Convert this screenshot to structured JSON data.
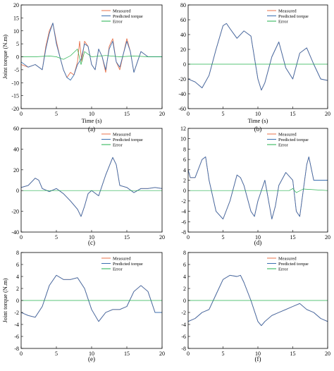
{
  "legend": [
    "Measured",
    "Predicted torque",
    "Error"
  ],
  "colors": {
    "measured": "#e8704a",
    "predicted": "#3a6fb0",
    "error": "#22b14c"
  },
  "chart_data": [
    {
      "type": "line",
      "panel_label": "(a)",
      "xlabel": "Time (s)",
      "ylabel": "Joint torque (N.m)",
      "xlim": [
        0,
        20
      ],
      "ylim": [
        -20,
        20
      ],
      "xticks": [
        0,
        5,
        10,
        15,
        20
      ],
      "yticks": [
        -20,
        -15,
        -10,
        -5,
        0,
        5,
        10,
        15,
        20
      ],
      "legend_position": "top-right",
      "series": [
        {
          "name": "Measured",
          "x": [
            0,
            1,
            2,
            3,
            3.5,
            4,
            4.5,
            5,
            5.5,
            6,
            6.5,
            7,
            7.5,
            8,
            8.3,
            8.6,
            9,
            9.5,
            10,
            10.5,
            11,
            11.5,
            12,
            12.5,
            13,
            13.5,
            14,
            14.5,
            15,
            15.5,
            16,
            16.5,
            17,
            17.5,
            18,
            19,
            20
          ],
          "y": [
            -3,
            -4,
            -3,
            -5,
            4,
            10,
            13,
            6,
            0,
            -5,
            -8,
            -6,
            -7,
            -2,
            6,
            -2,
            6,
            4,
            -3,
            -5,
            3,
            0,
            -6,
            4,
            7,
            -2,
            -5,
            1,
            7,
            2,
            -6,
            -2,
            2,
            1,
            0,
            0,
            0
          ]
        },
        {
          "name": "Predicted torque",
          "x": [
            0,
            1,
            2,
            3,
            3.5,
            4,
            4.5,
            5,
            5.5,
            6,
            6.5,
            7,
            7.5,
            8,
            8.5,
            9,
            9.5,
            10,
            10.5,
            11,
            11.5,
            12,
            12.5,
            13,
            13.5,
            14,
            14.5,
            15,
            15.5,
            16,
            16.5,
            17,
            17.5,
            18,
            19,
            20
          ],
          "y": [
            -2,
            -4,
            -3,
            -5,
            3,
            9,
            13,
            5,
            0,
            -5,
            -8,
            -9,
            -7,
            -3,
            -1,
            5,
            4,
            -3,
            -5,
            3,
            0,
            -5,
            3,
            6,
            -2,
            -4,
            1,
            6,
            2,
            -6,
            -2,
            2,
            1,
            0,
            0,
            0
          ]
        },
        {
          "name": "Error",
          "x": [
            0,
            2,
            4,
            5,
            6,
            7,
            8,
            8.5,
            9,
            10,
            12,
            14,
            16,
            18,
            20
          ],
          "y": [
            0,
            0,
            0.3,
            0,
            -1,
            0.4,
            3,
            -3,
            2,
            0,
            0.5,
            0,
            0.3,
            0,
            0
          ]
        }
      ]
    },
    {
      "type": "line",
      "panel_label": "(b)",
      "xlabel": "Time (s)",
      "ylabel": "",
      "xlim": [
        0,
        20
      ],
      "ylim": [
        -60,
        80
      ],
      "xticks": [
        0,
        5,
        10,
        15,
        20
      ],
      "yticks": [
        -60,
        -40,
        -20,
        0,
        20,
        40,
        60,
        80
      ],
      "legend_position": "top-right",
      "series": [
        {
          "name": "Measured",
          "x": [
            0,
            1,
            2,
            3,
            4,
            5,
            5.5,
            6,
            7,
            8,
            9,
            10,
            10.5,
            11,
            12,
            13,
            14,
            15,
            16,
            17,
            18,
            19,
            20
          ],
          "y": [
            -20,
            -24,
            -32,
            -15,
            20,
            52,
            55,
            48,
            35,
            45,
            38,
            -20,
            -35,
            -25,
            10,
            30,
            -5,
            -20,
            15,
            22,
            0,
            -20,
            -22
          ]
        },
        {
          "name": "Predicted torque",
          "x": [
            0,
            1,
            2,
            3,
            4,
            5,
            5.5,
            6,
            7,
            8,
            9,
            10,
            10.5,
            11,
            12,
            13,
            14,
            15,
            16,
            17,
            18,
            19,
            20
          ],
          "y": [
            -20,
            -24,
            -32,
            -15,
            20,
            52,
            55,
            48,
            35,
            45,
            38,
            -20,
            -35,
            -25,
            10,
            30,
            -5,
            -20,
            15,
            22,
            0,
            -20,
            -22
          ]
        },
        {
          "name": "Error",
          "x": [
            0,
            5,
            10,
            15,
            20
          ],
          "y": [
            0,
            0,
            0,
            0,
            0
          ]
        }
      ]
    },
    {
      "type": "line",
      "panel_label": "(c)",
      "xlabel": "",
      "ylabel": "",
      "xlim": [
        0,
        20
      ],
      "ylim": [
        -40,
        60
      ],
      "xticks": [
        0,
        5,
        10,
        15,
        20
      ],
      "yticks": [
        -40,
        -20,
        0,
        20,
        40,
        60
      ],
      "legend_position": "top-right",
      "series": [
        {
          "name": "Measured",
          "x": [
            0,
            1,
            2,
            2.5,
            3,
            4,
            5,
            6,
            7,
            8,
            8.5,
            9,
            9.5,
            10,
            11,
            12,
            13,
            13.5,
            14,
            15,
            16,
            17,
            18,
            19,
            20
          ],
          "y": [
            3,
            5,
            12,
            10,
            2,
            -1,
            2,
            -3,
            -10,
            -18,
            -25,
            -15,
            -3,
            0,
            -5,
            15,
            32,
            25,
            5,
            3,
            -2,
            2,
            2,
            3,
            2
          ]
        },
        {
          "name": "Predicted torque",
          "x": [
            0,
            1,
            2,
            2.5,
            3,
            4,
            5,
            6,
            7,
            8,
            8.5,
            9,
            9.5,
            10,
            11,
            12,
            13,
            13.5,
            14,
            15,
            16,
            17,
            18,
            19,
            20
          ],
          "y": [
            3,
            5,
            12,
            10,
            2,
            -1,
            2,
            -3,
            -10,
            -18,
            -25,
            -15,
            -3,
            0,
            -5,
            15,
            32,
            25,
            5,
            3,
            -2,
            2,
            2,
            3,
            2
          ]
        },
        {
          "name": "Error",
          "x": [
            0,
            5,
            10,
            15,
            20
          ],
          "y": [
            0,
            0,
            0,
            0,
            0
          ]
        }
      ]
    },
    {
      "type": "line",
      "panel_label": "(d)",
      "xlabel": "",
      "ylabel": "",
      "xlim": [
        0,
        20
      ],
      "ylim": [
        -8,
        12
      ],
      "xticks": [
        0,
        5,
        10,
        15,
        20
      ],
      "yticks": [
        -8,
        -6,
        -4,
        -2,
        0,
        2,
        4,
        6,
        8,
        10,
        12
      ],
      "legend_position": "top-right",
      "series": [
        {
          "name": "Measured",
          "x": [
            0,
            0.3,
            1,
            2,
            2.5,
            3,
            4,
            5,
            6,
            7,
            7.5,
            8,
            9,
            9.5,
            10,
            11,
            12,
            12.5,
            13,
            14,
            15,
            15.5,
            16,
            17,
            17.3,
            18,
            19,
            20
          ],
          "y": [
            4,
            2.5,
            2.5,
            6,
            6.5,
            2,
            -4,
            -5.5,
            -2,
            3,
            2.5,
            1,
            -4,
            -5,
            -2,
            2,
            -5.5,
            -3,
            1,
            3.5,
            2,
            -4,
            -5,
            5,
            6.5,
            2,
            2,
            2
          ]
        },
        {
          "name": "Predicted torque",
          "x": [
            0,
            0.3,
            1,
            2,
            2.5,
            3,
            4,
            5,
            6,
            7,
            7.5,
            8,
            9,
            9.5,
            10,
            11,
            12,
            12.5,
            13,
            14,
            15,
            15.5,
            16,
            17,
            17.3,
            18,
            19,
            20
          ],
          "y": [
            4,
            2.5,
            2.5,
            6,
            6.5,
            2,
            -4,
            -5.5,
            -2,
            3,
            2.5,
            1,
            -4,
            -5,
            -2,
            2,
            -5.5,
            -3,
            1,
            3.5,
            2,
            -4,
            -5,
            5,
            6.5,
            2,
            2,
            2
          ]
        },
        {
          "name": "Error",
          "x": [
            0,
            5,
            10,
            14.5,
            15,
            15.5,
            16.5,
            20
          ],
          "y": [
            0,
            0,
            0,
            0,
            0.4,
            -0.4,
            0.3,
            0
          ]
        }
      ]
    },
    {
      "type": "line",
      "panel_label": "(e)",
      "xlabel": "",
      "ylabel": "Joint torque (N.m)",
      "xlim": [
        0,
        20
      ],
      "ylim": [
        -8,
        8
      ],
      "xticks": [
        0,
        5,
        10,
        15,
        20
      ],
      "yticks": [
        -8,
        -6,
        -4,
        -2,
        0,
        2,
        4,
        6,
        8
      ],
      "legend_position": "top-right",
      "series": [
        {
          "name": "Measured",
          "x": [
            0,
            1,
            2,
            3,
            4,
            5,
            6,
            7,
            8,
            9,
            10,
            11,
            12,
            13,
            14,
            15,
            16,
            17,
            18,
            19,
            20
          ],
          "y": [
            -2,
            -2.5,
            -2.8,
            -1,
            2.5,
            4.2,
            3.5,
            3.5,
            3.8,
            2,
            -1.5,
            -3.5,
            -2,
            -1.5,
            -1.5,
            -1,
            1.5,
            2.5,
            1.5,
            -2,
            -2
          ]
        },
        {
          "name": "Predicted torque",
          "x": [
            0,
            1,
            2,
            3,
            4,
            5,
            6,
            7,
            8,
            9,
            10,
            11,
            12,
            13,
            14,
            15,
            16,
            17,
            18,
            19,
            20
          ],
          "y": [
            -2,
            -2.5,
            -2.8,
            -1,
            2.5,
            4.2,
            3.5,
            3.5,
            3.8,
            2,
            -1.5,
            -3.5,
            -2,
            -1.5,
            -1.5,
            -1,
            1.5,
            2.5,
            1.5,
            -2,
            -2
          ]
        },
        {
          "name": "Error",
          "x": [
            0,
            5,
            10,
            15,
            20
          ],
          "y": [
            0,
            0,
            0,
            0,
            0
          ]
        }
      ]
    },
    {
      "type": "line",
      "panel_label": "(f)",
      "xlabel": "",
      "ylabel": "",
      "xlim": [
        0,
        20
      ],
      "ylim": [
        -8,
        8
      ],
      "xticks": [
        0,
        5,
        10,
        15,
        20
      ],
      "yticks": [
        -8,
        -6,
        -4,
        -2,
        0,
        2,
        4,
        6,
        8
      ],
      "legend_position": "top-right",
      "series": [
        {
          "name": "Measured",
          "x": [
            0,
            1,
            2,
            3,
            4,
            5,
            6,
            7,
            7.5,
            8,
            9,
            10,
            10.5,
            11,
            12,
            13,
            14,
            15,
            16,
            17,
            18,
            19,
            20
          ],
          "y": [
            -3.5,
            -3,
            -2,
            -1.5,
            1,
            3.5,
            4.2,
            4,
            4.2,
            3,
            0,
            -3.5,
            -4.2,
            -3.5,
            -2.5,
            -2,
            -1.5,
            -1,
            -0.5,
            -1.5,
            -2,
            -3,
            -3.5
          ]
        },
        {
          "name": "Predicted torque",
          "x": [
            0,
            1,
            2,
            3,
            4,
            5,
            6,
            7,
            7.5,
            8,
            9,
            10,
            10.5,
            11,
            12,
            13,
            14,
            15,
            16,
            17,
            18,
            19,
            20
          ],
          "y": [
            -3.5,
            -3,
            -2,
            -1.5,
            1,
            3.5,
            4.2,
            4,
            4.2,
            3,
            0,
            -3.5,
            -4.2,
            -3.5,
            -2.5,
            -2,
            -1.5,
            -1,
            -0.5,
            -1.5,
            -2,
            -3,
            -3.5
          ]
        },
        {
          "name": "Error",
          "x": [
            0,
            5,
            10,
            15,
            20
          ],
          "y": [
            0,
            0,
            0,
            0,
            0
          ]
        }
      ]
    }
  ]
}
